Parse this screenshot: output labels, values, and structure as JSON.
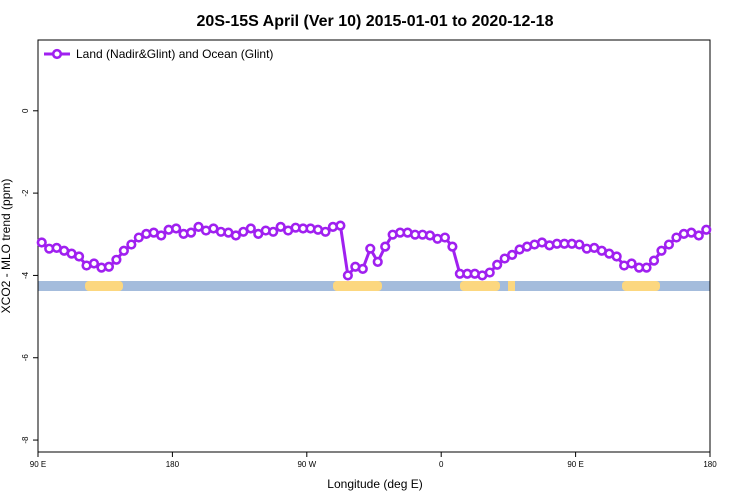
{
  "chart_data": {
    "type": "line",
    "title": "20S-15S April (Ver 10)   2015-01-01 to 2020-12-18",
    "x_label": "Longitude (deg E)",
    "y_label": "XCO2 - MLO trend (ppm)",
    "xlim": [
      90,
      540
    ],
    "ylim": [
      -8.29,
      1.72
    ],
    "xticks": [
      {
        "value": 90,
        "label": "90 E"
      },
      180,
      {
        "value": 270,
        "label": "90 W"
      },
      {
        "value": 360,
        "label": "0"
      },
      {
        "value": 450,
        "label": "90 E"
      },
      {
        "value": 540,
        "label": "180"
      }
    ],
    "yticks": [
      0,
      -2,
      -4,
      -6,
      -8
    ],
    "legend": "top-left",
    "x": [
      92.5,
      97.5,
      102.5,
      107.5,
      112.5,
      117.5,
      122.5,
      127.5,
      132.5,
      137.5,
      142.5,
      147.5,
      152.5,
      157.5,
      162.5,
      167.5,
      172.5,
      177.5,
      182.5,
      187.5,
      192.5,
      197.5,
      202.5,
      207.5,
      212.5,
      217.5,
      222.5,
      227.5,
      232.5,
      237.5,
      242.5,
      247.5,
      252.5,
      257.5,
      262.5,
      267.5,
      272.5,
      277.5,
      282.5,
      287.5,
      292.5,
      297.5,
      302.5,
      307.5,
      312.5,
      317.5,
      322.5,
      327.5,
      332.5,
      337.5,
      342.5,
      347.5,
      352.5,
      357.5,
      362.5,
      367.5,
      372.5,
      377.5,
      382.5,
      387.5,
      392.5,
      397.5,
      402.5,
      407.5,
      412.5,
      417.5,
      422.5,
      427.5,
      432.5,
      437.5,
      442.5,
      447.5,
      452.5,
      457.5,
      462.5,
      467.5,
      472.5,
      477.5,
      482.5,
      487.5,
      492.5,
      497.5,
      502.5,
      507.5,
      512.5,
      517.5,
      522.5,
      527.5,
      532.5,
      537.5
    ],
    "series": [
      {
        "name": "Land (Nadir&Glint) and Ocean (Glint)",
        "color": "#a020f0",
        "values": [
          -3.2,
          -3.35,
          -3.33,
          -3.4,
          -3.47,
          -3.54,
          -3.76,
          -3.71,
          -3.81,
          -3.79,
          -3.62,
          -3.4,
          -3.25,
          -3.08,
          -2.99,
          -2.96,
          -3.03,
          -2.89,
          -2.86,
          -2.99,
          -2.96,
          -2.82,
          -2.91,
          -2.86,
          -2.94,
          -2.96,
          -3.03,
          -2.94,
          -2.86,
          -2.99,
          -2.91,
          -2.94,
          -2.82,
          -2.91,
          -2.84,
          -2.86,
          -2.86,
          -2.89,
          -2.94,
          -2.82,
          -2.79,
          -4.0,
          -3.79,
          -3.84,
          -3.35,
          -3.67,
          -3.3,
          -3.01,
          -2.96,
          -2.96,
          -3.01,
          -3.01,
          -3.03,
          -3.11,
          -3.08,
          -3.3,
          -3.96,
          -3.96,
          -3.96,
          -4.0,
          -3.93,
          -3.74,
          -3.59,
          -3.5,
          -3.37,
          -3.3,
          -3.25,
          -3.2,
          -3.27,
          -3.23,
          -3.23,
          -3.23,
          -3.25,
          -3.35,
          -3.33,
          -3.4,
          -3.47,
          -3.54,
          -3.76,
          -3.71,
          -3.81,
          -3.81,
          -3.64,
          -3.4,
          -3.25,
          -3.08,
          -2.99,
          -2.96,
          -3.03,
          -2.89
        ]
      }
    ]
  }
}
